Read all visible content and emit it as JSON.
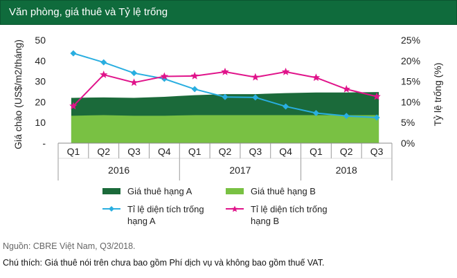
{
  "title": "Văn phòng, giá thuê và Tỷ lệ trống",
  "colors": {
    "rent_a": "#1b6a3a",
    "rent_b": "#79c143",
    "vacancy_a": "#29aee0",
    "vacancy_b": "#e0138a",
    "header": "#0f6b3c"
  },
  "chart_data": {
    "type": "area+line",
    "categories": [
      "Q1",
      "Q2",
      "Q3",
      "Q4",
      "Q1",
      "Q2",
      "Q3",
      "Q4",
      "Q1",
      "Q2",
      "Q3"
    ],
    "years": [
      {
        "label": "2016",
        "span": 4
      },
      {
        "label": "2017",
        "span": 4
      },
      {
        "label": "2018",
        "span": 3
      }
    ],
    "ylabel_left": "Giá chào (US$/m2/tháng)",
    "ylabel_right": "Tỷ lệ trống (%)",
    "y_left_ticks": [
      "50",
      "40",
      "30",
      "20",
      "10",
      "-"
    ],
    "y_right_ticks": [
      "25%",
      "20%",
      "15%",
      "10%",
      "5%",
      "0%"
    ],
    "ylim_left": [
      0,
      50
    ],
    "ylim_right": [
      0,
      25
    ],
    "series": [
      {
        "name": "Giá thuê hạng A",
        "type": "area",
        "axis": "left",
        "values": [
          22.0,
          22.2,
          22.0,
          22.5,
          23.3,
          23.8,
          23.8,
          24.3,
          24.6,
          24.6,
          24.8
        ]
      },
      {
        "name": "Giá thuê hạng B",
        "type": "area",
        "axis": "left",
        "values": [
          13.3,
          13.6,
          13.3,
          13.3,
          13.6,
          13.6,
          13.6,
          13.6,
          13.6,
          13.6,
          13.6
        ]
      },
      {
        "name": "Tỉ lệ diện tích trống hạng A",
        "type": "line",
        "axis": "right",
        "values": [
          21.8,
          19.6,
          17.0,
          15.6,
          13.1,
          11.2,
          11.1,
          8.9,
          7.3,
          6.6,
          6.2
        ]
      },
      {
        "name": "Tỉ lệ diện tích trống hạng B",
        "type": "line",
        "axis": "right",
        "values": [
          9.0,
          16.6,
          14.7,
          16.2,
          16.3,
          17.3,
          16.0,
          17.3,
          15.9,
          13.1,
          11.3
        ]
      }
    ]
  },
  "legend": {
    "rent_a": "Giá thuê hạng A",
    "rent_b": "Giá thuê hạng B",
    "vac_a_line1": "Tỉ lệ diện tích trống",
    "vac_a_line2": "hạng A",
    "vac_b_line1": "Tỉ lệ diện tích trống",
    "vac_b_line2": "hạng B"
  },
  "source": "Nguồn: CBRE Việt Nam, Q3/2018.",
  "comment": "Chú thích: Giá thuê nói trên chưa bao gồm Phí dịch vụ và không bao gồm thuế VAT."
}
